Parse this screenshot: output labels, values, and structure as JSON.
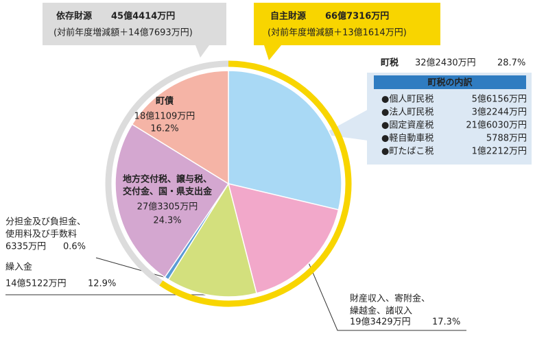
{
  "chart_data": {
    "type": "pie",
    "categories": [
      [
        "町税"
      ],
      [
        "財産収入、寄附金、",
        "繰越金、諸収入"
      ],
      [
        "繰入金"
      ],
      [
        "分担金及び負担金、",
        "使用料及び手数料"
      ],
      [
        "地方交付税、譲与税、",
        "交付金、国・県支出金"
      ],
      [
        "町債"
      ]
    ],
    "values": [
      28.7,
      17.3,
      12.9,
      0.6,
      24.3,
      16.2
    ],
    "value_labels": [
      "28.7%",
      "17.3%",
      "12.9%",
      "0.6%",
      "24.3%",
      "16.2%"
    ],
    "amounts": [
      "32億2430万円",
      "19億3429万円",
      "14億5122万円",
      "6335万円",
      "27億3305万円",
      "18億1109万円"
    ],
    "colors": [
      "#a9d9f5",
      "#f2a8ca",
      "#d3e07d",
      "#5b9bd5",
      "#d4a7d0",
      "#f5b4a6"
    ],
    "groups": [
      {
        "name": "自主財源",
        "value": 667316,
        "value_label": "66億7316万円",
        "change": "(対前年度増減額＋13億1614万円)",
        "color": "#f8d500"
      },
      {
        "name": "依存財源",
        "value": 454414,
        "value_label": "45億4414万円",
        "change": "(対前年度増減額＋14億7693万円)",
        "color": "#dcdcdc"
      }
    ],
    "breakdown": {
      "title": "町税の内訳",
      "items": [
        {
          "name": "●個人町民税",
          "amount": "5億6156万円"
        },
        {
          "name": "●法人町民税",
          "amount": "3億2244万円"
        },
        {
          "name": "●固定資産税",
          "amount": "21億6030万円"
        },
        {
          "name": "●軽自動車税",
          "amount": "5788万円"
        },
        {
          "name": "●町たばこ税",
          "amount": "1億2212万円"
        }
      ]
    }
  }
}
